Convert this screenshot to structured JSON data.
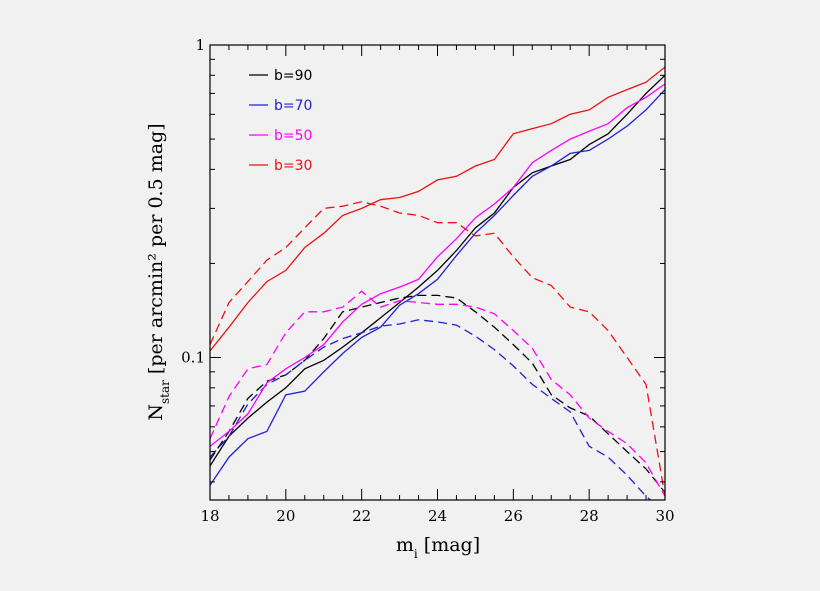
{
  "chart_data": {
    "type": "line",
    "xlabel": {
      "base": "m",
      "sub": "i",
      "rest": " [mag]"
    },
    "ylabel": {
      "base": "N",
      "sub": "star",
      "rest": " [per arcmin² per 0.5 mag]"
    },
    "xlim": [
      18,
      30
    ],
    "ylim": [
      0.035,
      1
    ],
    "yscale": "log",
    "grid": false,
    "legend_position": "top-left",
    "x_ticks": [
      "18",
      "20",
      "22",
      "24",
      "26",
      "28",
      "30"
    ],
    "y_ticks": [
      "0.1",
      "1"
    ],
    "legend": [
      {
        "label": "b=90",
        "color": "#000000"
      },
      {
        "label": "b=70",
        "color": "#2020d0"
      },
      {
        "label": "b=50",
        "color": "#ff00ff"
      },
      {
        "label": "b=30",
        "color": "#ee1111"
      }
    ],
    "x": [
      18,
      18.5,
      19,
      19.5,
      20,
      20.5,
      21,
      21.5,
      22,
      22.5,
      23,
      23.5,
      24,
      24.5,
      25,
      25.5,
      26,
      26.5,
      27,
      27.5,
      28,
      28.5,
      29,
      29.5,
      30
    ],
    "series": [
      {
        "label": "b=90",
        "style": "solid",
        "color": "#000000",
        "values": [
          0.045,
          0.056,
          0.064,
          0.072,
          0.08,
          0.092,
          0.098,
          0.108,
          0.12,
          0.134,
          0.15,
          0.168,
          0.19,
          0.22,
          0.26,
          0.29,
          0.35,
          0.39,
          0.41,
          0.43,
          0.48,
          0.52,
          0.6,
          0.7,
          0.8
        ]
      },
      {
        "label": "b=90",
        "style": "dashed",
        "color": "#000000",
        "values": [
          0.047,
          0.058,
          0.074,
          0.084,
          0.088,
          0.098,
          0.115,
          0.14,
          0.145,
          0.15,
          0.155,
          0.158,
          0.158,
          0.155,
          0.14,
          0.125,
          0.11,
          0.096,
          0.076,
          0.069,
          0.065,
          0.057,
          0.05,
          0.044,
          0.037
        ]
      },
      {
        "label": "b=70",
        "style": "solid",
        "color": "#2020d0",
        "values": [
          0.039,
          0.048,
          0.055,
          0.058,
          0.076,
          0.078,
          0.09,
          0.103,
          0.116,
          0.125,
          0.147,
          0.16,
          0.178,
          0.212,
          0.25,
          0.285,
          0.33,
          0.38,
          0.41,
          0.45,
          0.46,
          0.5,
          0.55,
          0.62,
          0.72
        ]
      },
      {
        "label": "b=70",
        "style": "dashed",
        "color": "#2020d0",
        "values": [
          0.048,
          0.056,
          0.071,
          0.082,
          0.088,
          0.098,
          0.108,
          0.115,
          0.12,
          0.126,
          0.128,
          0.132,
          0.13,
          0.127,
          0.117,
          0.106,
          0.094,
          0.082,
          0.074,
          0.067,
          0.052,
          0.048,
          0.042,
          0.036,
          0.032
        ]
      },
      {
        "label": "b=50",
        "style": "solid",
        "color": "#ff00ff",
        "values": [
          0.052,
          0.058,
          0.066,
          0.083,
          0.092,
          0.1,
          0.11,
          0.13,
          0.148,
          0.16,
          0.168,
          0.178,
          0.21,
          0.24,
          0.28,
          0.31,
          0.35,
          0.42,
          0.46,
          0.5,
          0.53,
          0.56,
          0.63,
          0.68,
          0.75
        ]
      },
      {
        "label": "b=50",
        "style": "dashed",
        "color": "#ff00ff",
        "values": [
          0.055,
          0.075,
          0.092,
          0.095,
          0.12,
          0.14,
          0.14,
          0.145,
          0.163,
          0.145,
          0.152,
          0.15,
          0.148,
          0.148,
          0.145,
          0.138,
          0.122,
          0.107,
          0.085,
          0.076,
          0.064,
          0.058,
          0.053,
          0.046,
          0.036
        ]
      },
      {
        "label": "b=30",
        "style": "solid",
        "color": "#ee1111",
        "values": [
          0.105,
          0.125,
          0.15,
          0.175,
          0.19,
          0.225,
          0.25,
          0.285,
          0.3,
          0.32,
          0.325,
          0.34,
          0.37,
          0.38,
          0.41,
          0.43,
          0.52,
          0.54,
          0.56,
          0.6,
          0.62,
          0.68,
          0.72,
          0.76,
          0.85
        ]
      },
      {
        "label": "b=30",
        "style": "dashed",
        "color": "#ee1111",
        "values": [
          0.11,
          0.15,
          0.175,
          0.205,
          0.225,
          0.26,
          0.3,
          0.305,
          0.315,
          0.305,
          0.29,
          0.285,
          0.27,
          0.27,
          0.245,
          0.25,
          0.21,
          0.18,
          0.17,
          0.145,
          0.14,
          0.122,
          0.1,
          0.082,
          0.036
        ]
      }
    ]
  }
}
